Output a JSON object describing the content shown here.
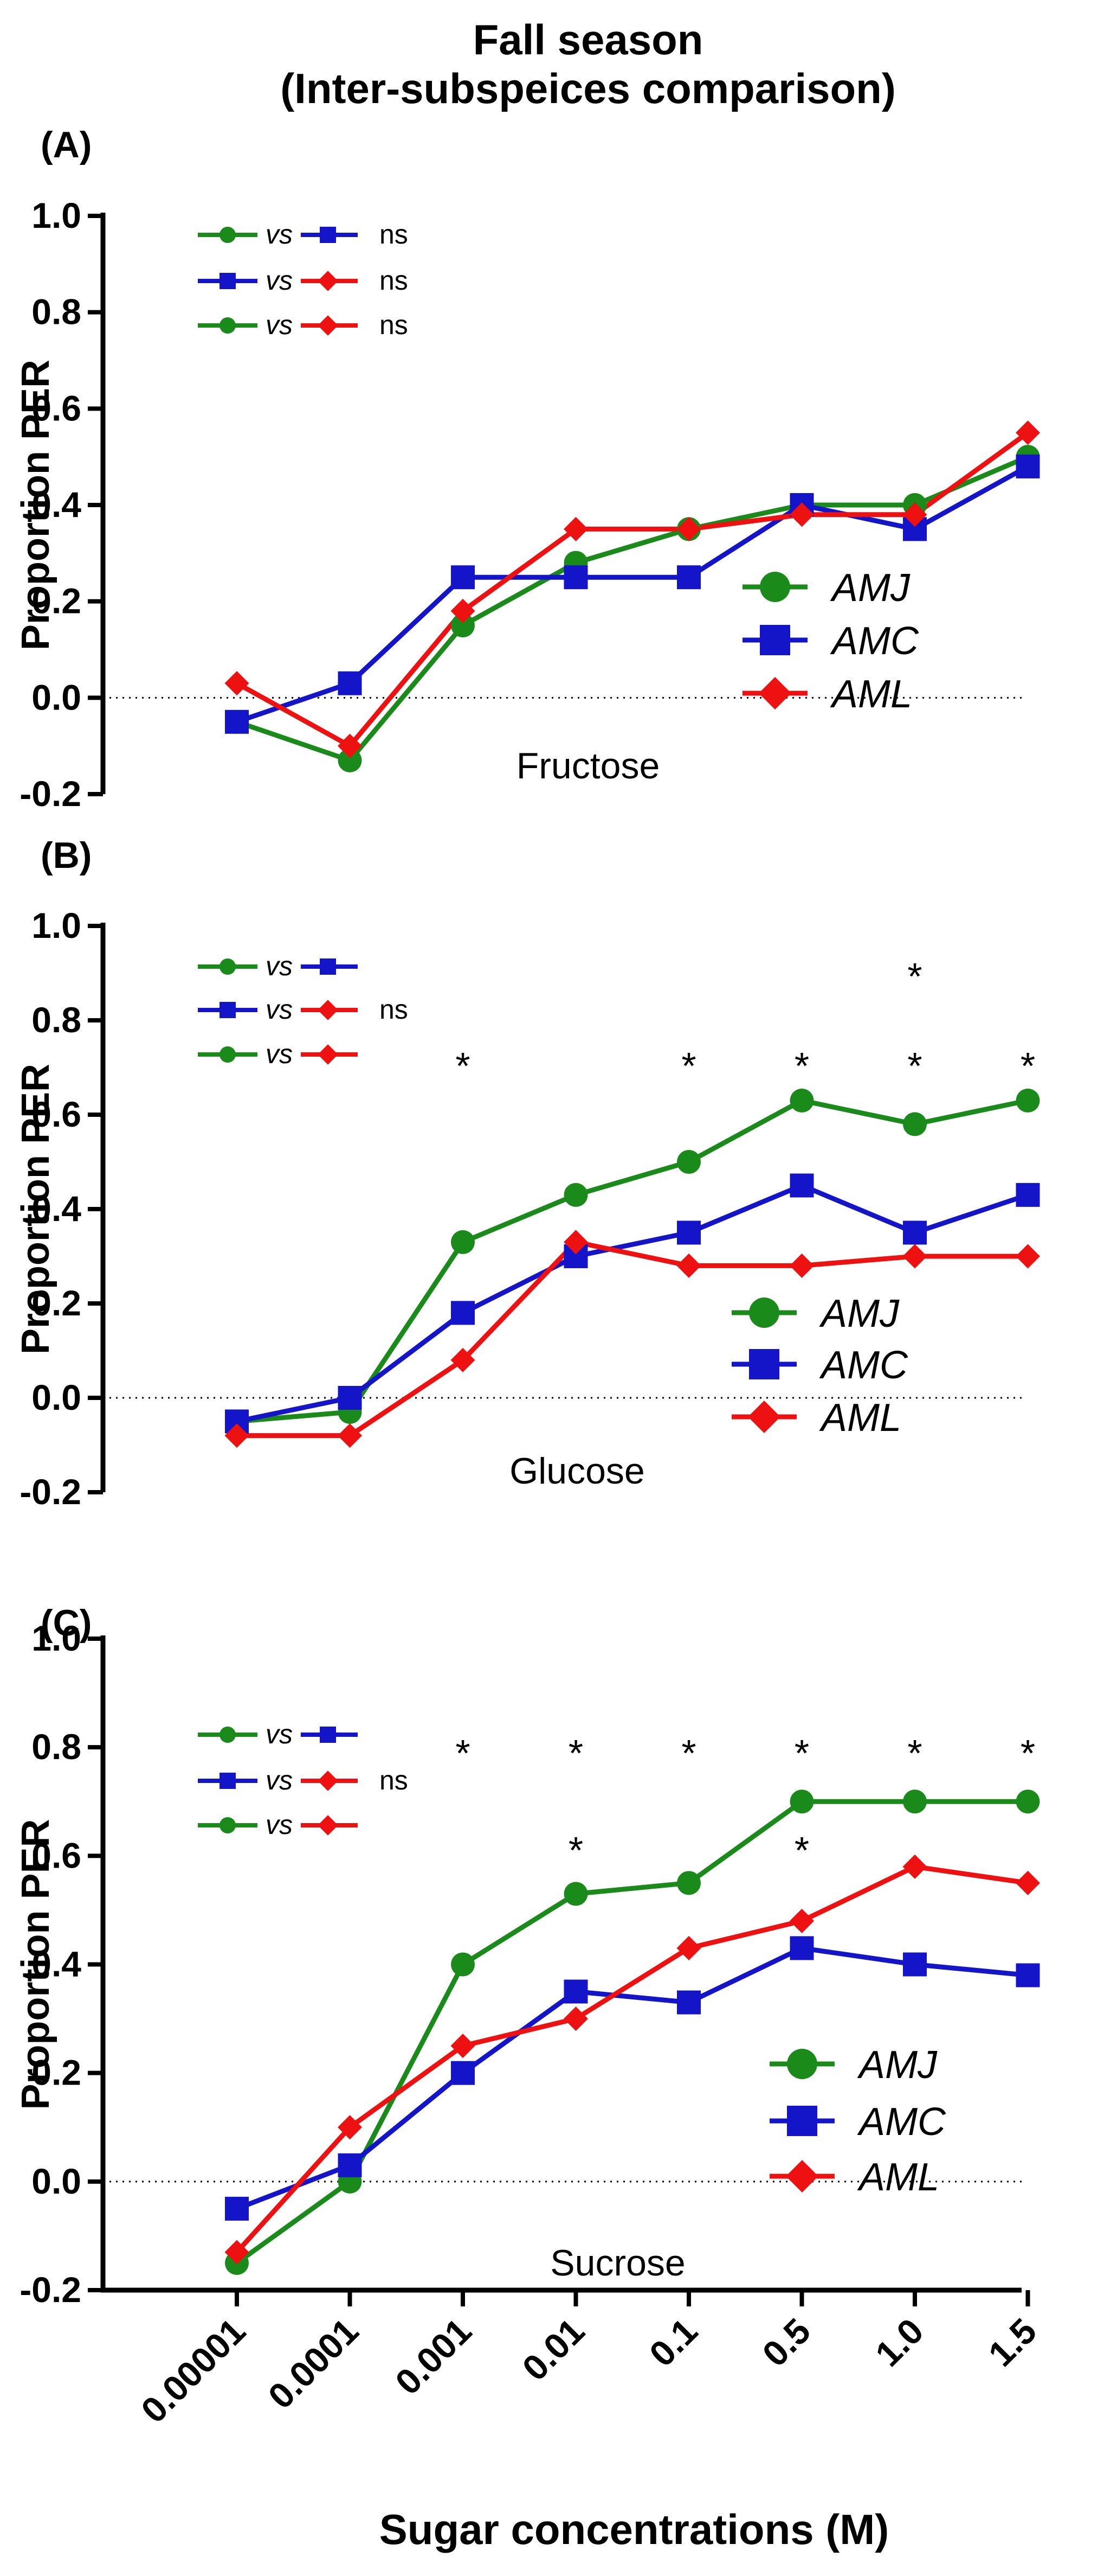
{
  "figure": {
    "title_line1": "Fall season",
    "title_line2": "(Inter-subspeices comparison)",
    "xlabel": "Sugar concentrations (M)",
    "ylabel": "Proportion PER",
    "vs_word": "vs",
    "colors": {
      "AMJ": "#1a8a1a",
      "AMC": "#1414c8",
      "AML": "#ee1111"
    }
  },
  "chart_data": [
    {
      "panel": "(A)",
      "type": "line",
      "sugar": "Fructose",
      "categories": [
        "0.00001",
        "0.0001",
        "0.001",
        "0.01",
        "0.1",
        "0.5",
        "1.0",
        "1.5"
      ],
      "ylim": [
        -0.2,
        1.0
      ],
      "yticks": [
        "-0.2",
        "0.0",
        "0.2",
        "0.4",
        "0.6",
        "0.8",
        "1.0"
      ],
      "series": [
        {
          "name": "AMJ",
          "values": [
            -0.05,
            -0.13,
            0.15,
            0.28,
            0.35,
            0.4,
            0.4,
            0.5
          ]
        },
        {
          "name": "AMC",
          "values": [
            -0.05,
            0.03,
            0.25,
            0.25,
            0.25,
            0.4,
            0.35,
            0.48
          ]
        },
        {
          "name": "AML",
          "values": [
            0.03,
            -0.1,
            0.18,
            0.35,
            0.35,
            0.38,
            0.38,
            0.55
          ]
        }
      ],
      "comparisons": [
        {
          "a": "AMJ",
          "b": "AMC",
          "result": "ns"
        },
        {
          "a": "AMC",
          "b": "AML",
          "result": "ns"
        },
        {
          "a": "AMJ",
          "b": "AML",
          "result": "ns"
        }
      ],
      "significance_marks": []
    },
    {
      "panel": "(B)",
      "type": "line",
      "sugar": "Glucose",
      "categories": [
        "0.00001",
        "0.0001",
        "0.001",
        "0.01",
        "0.1",
        "0.5",
        "1.0",
        "1.5"
      ],
      "ylim": [
        -0.2,
        1.0
      ],
      "yticks": [
        "-0.2",
        "0.0",
        "0.2",
        "0.4",
        "0.6",
        "0.8",
        "1.0"
      ],
      "series": [
        {
          "name": "AMJ",
          "values": [
            -0.05,
            -0.03,
            0.33,
            0.43,
            0.5,
            0.63,
            0.58,
            0.63
          ]
        },
        {
          "name": "AMC",
          "values": [
            -0.05,
            0.0,
            0.18,
            0.3,
            0.35,
            0.45,
            0.35,
            0.43
          ]
        },
        {
          "name": "AML",
          "values": [
            -0.08,
            -0.08,
            0.08,
            0.33,
            0.28,
            0.28,
            0.3,
            0.3
          ]
        }
      ],
      "comparisons": [
        {
          "a": "AMJ",
          "b": "AMC",
          "result": ""
        },
        {
          "a": "AMC",
          "b": "AML",
          "result": "ns"
        },
        {
          "a": "AMJ",
          "b": "AML",
          "result": ""
        }
      ],
      "significance_marks": [
        {
          "row": 0,
          "cats": [
            6
          ]
        },
        {
          "row": 2,
          "cats": [
            2,
            4,
            5,
            6,
            7
          ]
        }
      ]
    },
    {
      "panel": "(C)",
      "type": "line",
      "sugar": "Sucrose",
      "categories": [
        "0.00001",
        "0.0001",
        "0.001",
        "0.01",
        "0.1",
        "0.5",
        "1.0",
        "1.5"
      ],
      "ylim": [
        -0.2,
        1.0
      ],
      "yticks": [
        "-0.2",
        "0.0",
        "0.2",
        "0.4",
        "0.6",
        "0.8",
        "1.0"
      ],
      "series": [
        {
          "name": "AMJ",
          "values": [
            -0.15,
            0.0,
            0.4,
            0.53,
            0.55,
            0.7,
            0.7,
            0.7
          ]
        },
        {
          "name": "AMC",
          "values": [
            -0.05,
            0.03,
            0.2,
            0.35,
            0.33,
            0.43,
            0.4,
            0.38
          ]
        },
        {
          "name": "AML",
          "values": [
            -0.13,
            0.1,
            0.25,
            0.3,
            0.43,
            0.48,
            0.58,
            0.55
          ]
        }
      ],
      "comparisons": [
        {
          "a": "AMJ",
          "b": "AMC",
          "result": ""
        },
        {
          "a": "AMC",
          "b": "AML",
          "result": "ns"
        },
        {
          "a": "AMJ",
          "b": "AML",
          "result": ""
        }
      ],
      "significance_marks": [
        {
          "row": 0,
          "cats": [
            2,
            3,
            4,
            5,
            6,
            7
          ]
        },
        {
          "row": 2,
          "cats": [
            3,
            5
          ]
        }
      ]
    }
  ]
}
